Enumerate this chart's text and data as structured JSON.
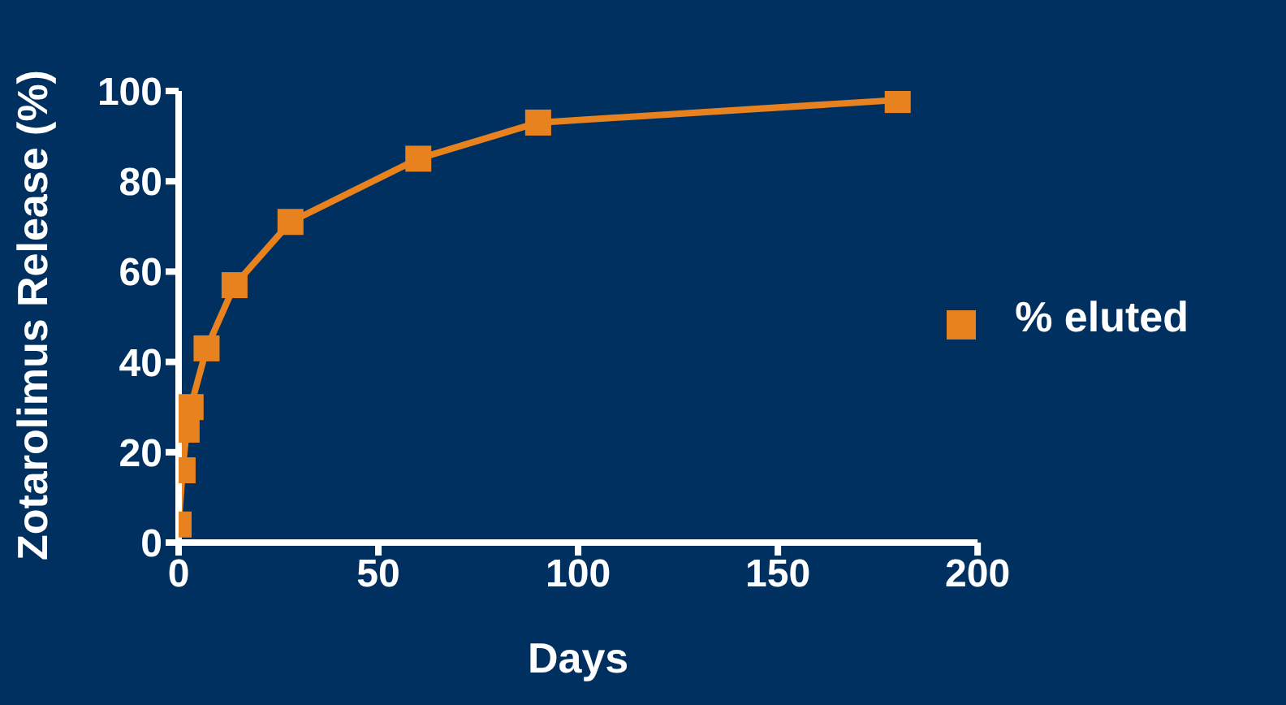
{
  "chart_data": {
    "type": "line",
    "xlabel": "Days",
    "ylabel": "Zotarolimus Release (%)",
    "x": [
      0,
      1,
      2,
      3,
      7,
      14,
      28,
      60,
      90,
      180
    ],
    "series": [
      {
        "name": "% eluted",
        "color": "#e8821e",
        "values": [
          4,
          16,
          25,
          30,
          43,
          57,
          71,
          85,
          93,
          98
        ]
      }
    ],
    "xlim": [
      0,
      200
    ],
    "xticks": [
      0,
      50,
      100,
      150,
      200
    ],
    "ylim": [
      0,
      100
    ],
    "yticks": [
      0,
      20,
      40,
      60,
      80,
      100
    ],
    "grid": false,
    "legend": "right",
    "marker": "square",
    "line_style": "solid"
  }
}
